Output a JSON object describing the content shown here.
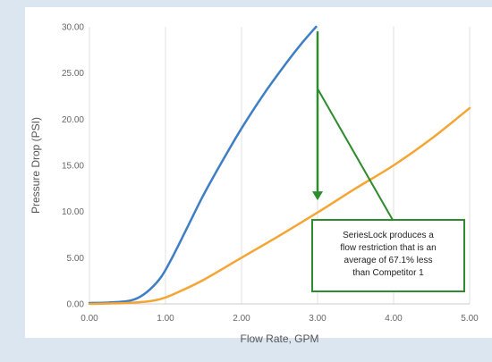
{
  "chart_data": {
    "type": "line",
    "title": "",
    "xlabel": "Flow Rate, GPM",
    "ylabel": "Pressure Drop (PSI)",
    "xlim": [
      0,
      5
    ],
    "ylim": [
      0,
      30
    ],
    "x_ticks": [
      "0.00",
      "1.00",
      "2.00",
      "3.00",
      "4.00",
      "5.00"
    ],
    "y_ticks": [
      "0.00",
      "5.00",
      "10.00",
      "15.00",
      "20.00",
      "25.00",
      "30.00"
    ],
    "grid": "vertical",
    "legend": "none",
    "series": [
      {
        "color": "#3d7ec4",
        "points": [
          [
            0,
            0.1
          ],
          [
            0.25,
            0.15
          ],
          [
            0.5,
            0.3
          ],
          [
            0.65,
            0.7
          ],
          [
            0.8,
            1.6
          ],
          [
            0.95,
            3.0
          ],
          [
            1.1,
            5.2
          ],
          [
            1.3,
            8.5
          ],
          [
            1.5,
            11.8
          ],
          [
            1.75,
            15.5
          ],
          [
            2.0,
            19.0
          ],
          [
            2.3,
            22.8
          ],
          [
            2.6,
            26.2
          ],
          [
            2.8,
            28.3
          ],
          [
            2.98,
            30.0
          ]
        ]
      },
      {
        "color": "#f4a533",
        "points": [
          [
            0,
            0.0
          ],
          [
            0.5,
            0.1
          ],
          [
            0.8,
            0.3
          ],
          [
            1.0,
            0.7
          ],
          [
            1.2,
            1.4
          ],
          [
            1.5,
            2.6
          ],
          [
            2.0,
            5.0
          ],
          [
            2.5,
            7.4
          ],
          [
            3.0,
            9.9
          ],
          [
            3.5,
            12.5
          ],
          [
            4.0,
            15.0
          ],
          [
            4.5,
            17.9
          ],
          [
            5.0,
            21.2
          ]
        ]
      }
    ],
    "annotations": {
      "arrow": {
        "x": 3.0,
        "y_start": 29.5,
        "y_end": 11.5,
        "color": "#2e8b2e"
      },
      "pointer": {
        "x_start": 3.0,
        "y_start": 23.3,
        "x_end": 4.05,
        "y_end": 8.2,
        "color": "#2e8b2e"
      },
      "box_lines": [
        "SeriesLock produces a",
        "flow restriction that is an",
        "average of 67.1% less",
        "than Competitor 1"
      ],
      "box_color": "#2e8b2e"
    }
  }
}
